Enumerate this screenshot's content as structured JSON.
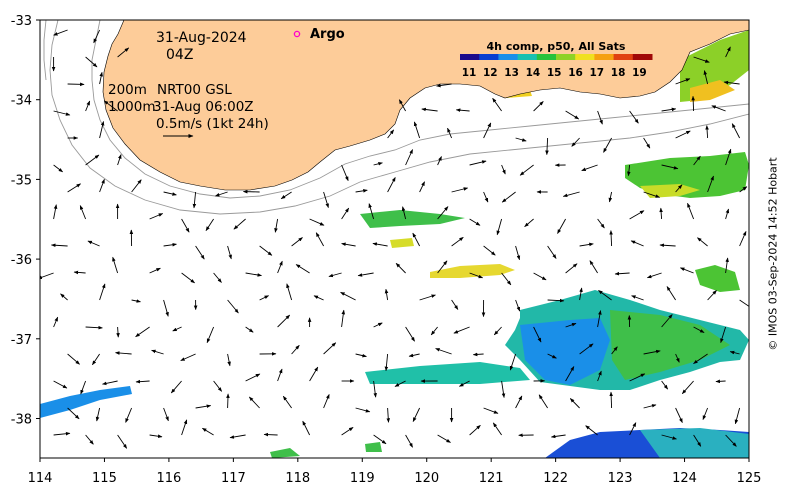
{
  "map": {
    "date": "31-Aug-2024",
    "hour": "04Z",
    "argo_label": "Argo",
    "depth_200": "200m",
    "depth_1000": "1000m",
    "current_product": "NRT00 GSL",
    "current_time": "31-Aug 06:00Z",
    "scale_label": "0.5m/s (1kt 24h)",
    "colorbar_title": "4h comp, p50, All Sats",
    "colorbar_ticks": [
      "11",
      "12",
      "13",
      "14",
      "15",
      "16",
      "17",
      "18",
      "19"
    ],
    "colorbar_colors": [
      "#1a0a8c",
      "#0a3fd0",
      "#1a8fe8",
      "#18c0b0",
      "#26c23c",
      "#8fd226",
      "#f0e020",
      "#f5a010",
      "#e04010",
      "#a00808"
    ],
    "credit": "© IMOS 03-Sep-2024 14:52 Hobart",
    "x_ticks": [
      "114",
      "115",
      "116",
      "117",
      "118",
      "119",
      "120",
      "121",
      "122",
      "123",
      "124",
      "125"
    ],
    "y_ticks": [
      "-33",
      "-34",
      "-35",
      "-36",
      "-37",
      "-38"
    ],
    "land_color": "#fdcc99"
  }
}
